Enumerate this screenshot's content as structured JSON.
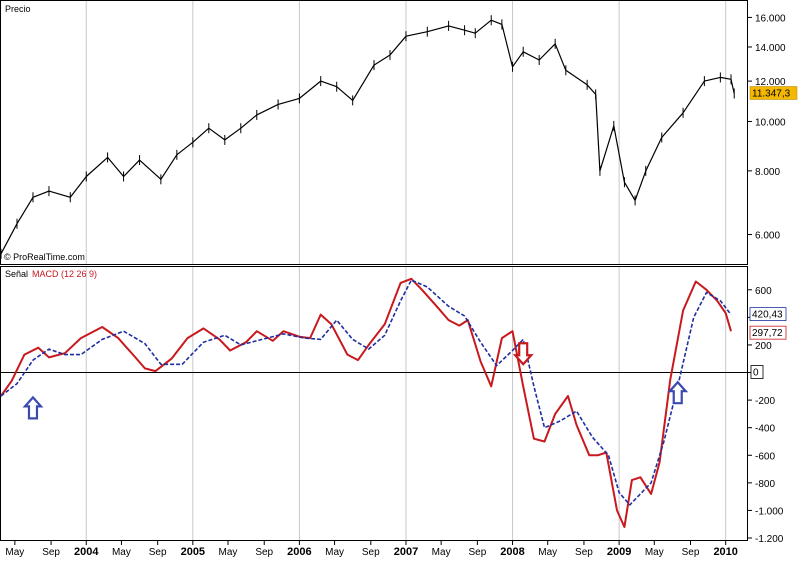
{
  "chart_data": [
    {
      "type": "line",
      "title": "Precio",
      "watermark": "© ProRealTime.com",
      "scale": "log",
      "y_ticks": [
        6000,
        8000,
        10000,
        12000,
        14000,
        16000
      ],
      "y_tick_labels": [
        "6.000",
        "8.000",
        "10.000",
        "12.000",
        "14.000",
        "16.000"
      ],
      "ylim": [
        5300,
        17000
      ],
      "last_value_label": "11.347,3",
      "accent_color": "#f5b800",
      "series": [
        {
          "color": "#000000",
          "x": [
            2003.2,
            2003.35,
            2003.5,
            2003.65,
            2003.85,
            2004.0,
            2004.2,
            2004.35,
            2004.5,
            2004.7,
            2004.85,
            2005.0,
            2005.15,
            2005.3,
            2005.45,
            2005.6,
            2005.8,
            2006.0,
            2006.2,
            2006.35,
            2006.5,
            2006.7,
            2006.85,
            2007.0,
            2007.2,
            2007.4,
            2007.55,
            2007.65,
            2007.8,
            2007.9,
            2008.0,
            2008.1,
            2008.25,
            2008.4,
            2008.5,
            2008.7,
            2008.78,
            2008.82,
            2008.95,
            2009.05,
            2009.15,
            2009.25,
            2009.4,
            2009.6,
            2009.8,
            2009.95,
            2010.05,
            2010.08
          ],
          "values": [
            5500,
            6300,
            7100,
            7300,
            7100,
            7800,
            8500,
            7800,
            8400,
            7700,
            8600,
            9100,
            9700,
            9200,
            9700,
            10300,
            10800,
            11100,
            12000,
            11700,
            11000,
            12900,
            13500,
            14700,
            15000,
            15400,
            15100,
            14900,
            15800,
            15500,
            12800,
            13700,
            13200,
            14200,
            12600,
            11800,
            11300,
            8000,
            9800,
            7600,
            7000,
            8000,
            9300,
            10400,
            12000,
            12200,
            12100,
            11347
          ]
        }
      ]
    },
    {
      "type": "line",
      "title": "Señal",
      "series_names": [
        "MACD (12 26 9)"
      ],
      "y_ticks": [
        600,
        400,
        200,
        0,
        -200,
        -400,
        -600,
        -800,
        -1000,
        -1200
      ],
      "y_tick_labels": [
        "600",
        "",
        "200",
        "",
        "-200",
        "-400",
        "-600",
        "-800",
        "-1.000",
        "-1.200"
      ],
      "ylim": [
        -1200,
        700
      ],
      "zero_label": "0",
      "last_value_labels": [
        "420,43",
        "297,72"
      ],
      "series": [
        {
          "name": "MACD (12 26 9)",
          "color": "#c8191e",
          "x": [
            2003.2,
            2003.3,
            2003.42,
            2003.55,
            2003.65,
            2003.8,
            2003.95,
            2004.15,
            2004.3,
            2004.45,
            2004.55,
            2004.65,
            2004.8,
            2004.95,
            2005.1,
            2005.25,
            2005.35,
            2005.5,
            2005.6,
            2005.75,
            2005.85,
            2006.0,
            2006.1,
            2006.2,
            2006.3,
            2006.45,
            2006.55,
            2006.65,
            2006.8,
            2006.95,
            2007.05,
            2007.15,
            2007.3,
            2007.4,
            2007.5,
            2007.58,
            2007.7,
            2007.8,
            2007.9,
            2008.0,
            2008.1,
            2008.2,
            2008.3,
            2008.4,
            2008.52,
            2008.6,
            2008.72,
            2008.8,
            2008.88,
            2008.98,
            2009.05,
            2009.12,
            2009.2,
            2009.3,
            2009.38,
            2009.48,
            2009.6,
            2009.72,
            2009.82,
            2009.92,
            2010.0,
            2010.05
          ],
          "values": [
            -170,
            -60,
            130,
            180,
            110,
            140,
            250,
            330,
            250,
            120,
            30,
            10,
            100,
            250,
            320,
            240,
            160,
            220,
            300,
            230,
            300,
            260,
            250,
            420,
            350,
            130,
            90,
            200,
            350,
            650,
            680,
            600,
            470,
            380,
            340,
            380,
            80,
            -100,
            250,
            300,
            -100,
            -480,
            -500,
            -300,
            -170,
            -380,
            -600,
            -600,
            -580,
            -1000,
            -1120,
            -780,
            -760,
            -880,
            -650,
            -50,
            450,
            660,
            600,
            520,
            430,
            300
          ]
        },
        {
          "name": "Signal",
          "color": "#1f2fa0",
          "x": [
            2003.2,
            2003.35,
            2003.5,
            2003.65,
            2003.8,
            2003.95,
            2004.15,
            2004.35,
            2004.55,
            2004.7,
            2004.9,
            2005.1,
            2005.3,
            2005.45,
            2005.65,
            2005.85,
            2006.05,
            2006.2,
            2006.35,
            2006.5,
            2006.65,
            2006.8,
            2006.95,
            2007.05,
            2007.2,
            2007.4,
            2007.55,
            2007.7,
            2007.85,
            2008.0,
            2008.1,
            2008.2,
            2008.3,
            2008.45,
            2008.6,
            2008.75,
            2008.9,
            2009.0,
            2009.1,
            2009.2,
            2009.3,
            2009.42,
            2009.55,
            2009.7,
            2009.82,
            2009.95,
            2010.05
          ],
          "values": [
            -170,
            -80,
            90,
            170,
            130,
            130,
            240,
            300,
            210,
            60,
            60,
            220,
            270,
            200,
            240,
            280,
            250,
            240,
            380,
            240,
            170,
            270,
            520,
            670,
            620,
            480,
            410,
            220,
            50,
            160,
            240,
            -100,
            -400,
            -350,
            -280,
            -470,
            -600,
            -870,
            -960,
            -880,
            -800,
            -500,
            -100,
            400,
            580,
            520,
            420
          ]
        }
      ]
    }
  ],
  "x_axis": {
    "xlim": [
      2003.2,
      2010.2
    ],
    "ticks": [
      {
        "x": 2003.33,
        "label": "May",
        "year": false
      },
      {
        "x": 2003.67,
        "label": "Sep",
        "year": false
      },
      {
        "x": 2004.0,
        "label": "2004",
        "year": true
      },
      {
        "x": 2004.33,
        "label": "May",
        "year": false
      },
      {
        "x": 2004.67,
        "label": "Sep",
        "year": false
      },
      {
        "x": 2005.0,
        "label": "2005",
        "year": true
      },
      {
        "x": 2005.33,
        "label": "May",
        "year": false
      },
      {
        "x": 2005.67,
        "label": "Sep",
        "year": false
      },
      {
        "x": 2006.0,
        "label": "2006",
        "year": true
      },
      {
        "x": 2006.33,
        "label": "May",
        "year": false
      },
      {
        "x": 2006.67,
        "label": "Sep",
        "year": false
      },
      {
        "x": 2007.0,
        "label": "2007",
        "year": true
      },
      {
        "x": 2007.33,
        "label": "May",
        "year": false
      },
      {
        "x": 2007.67,
        "label": "Sep",
        "year": false
      },
      {
        "x": 2008.0,
        "label": "2008",
        "year": true
      },
      {
        "x": 2008.33,
        "label": "May",
        "year": false
      },
      {
        "x": 2008.67,
        "label": "Sep",
        "year": false
      },
      {
        "x": 2009.0,
        "label": "2009",
        "year": true
      },
      {
        "x": 2009.33,
        "label": "May",
        "year": false
      },
      {
        "x": 2009.67,
        "label": "Sep",
        "year": false
      },
      {
        "x": 2010.0,
        "label": "2010",
        "year": true
      }
    ]
  },
  "annotations": [
    {
      "kind": "arrow-up",
      "color": "#3a4bb0",
      "x": 2003.5,
      "y": -260
    },
    {
      "kind": "arrow-down",
      "color": "#c8191e",
      "x": 2008.1,
      "y": 140
    },
    {
      "kind": "arrow-up",
      "color": "#3a4bb0",
      "x": 2009.55,
      "y": -150
    }
  ]
}
